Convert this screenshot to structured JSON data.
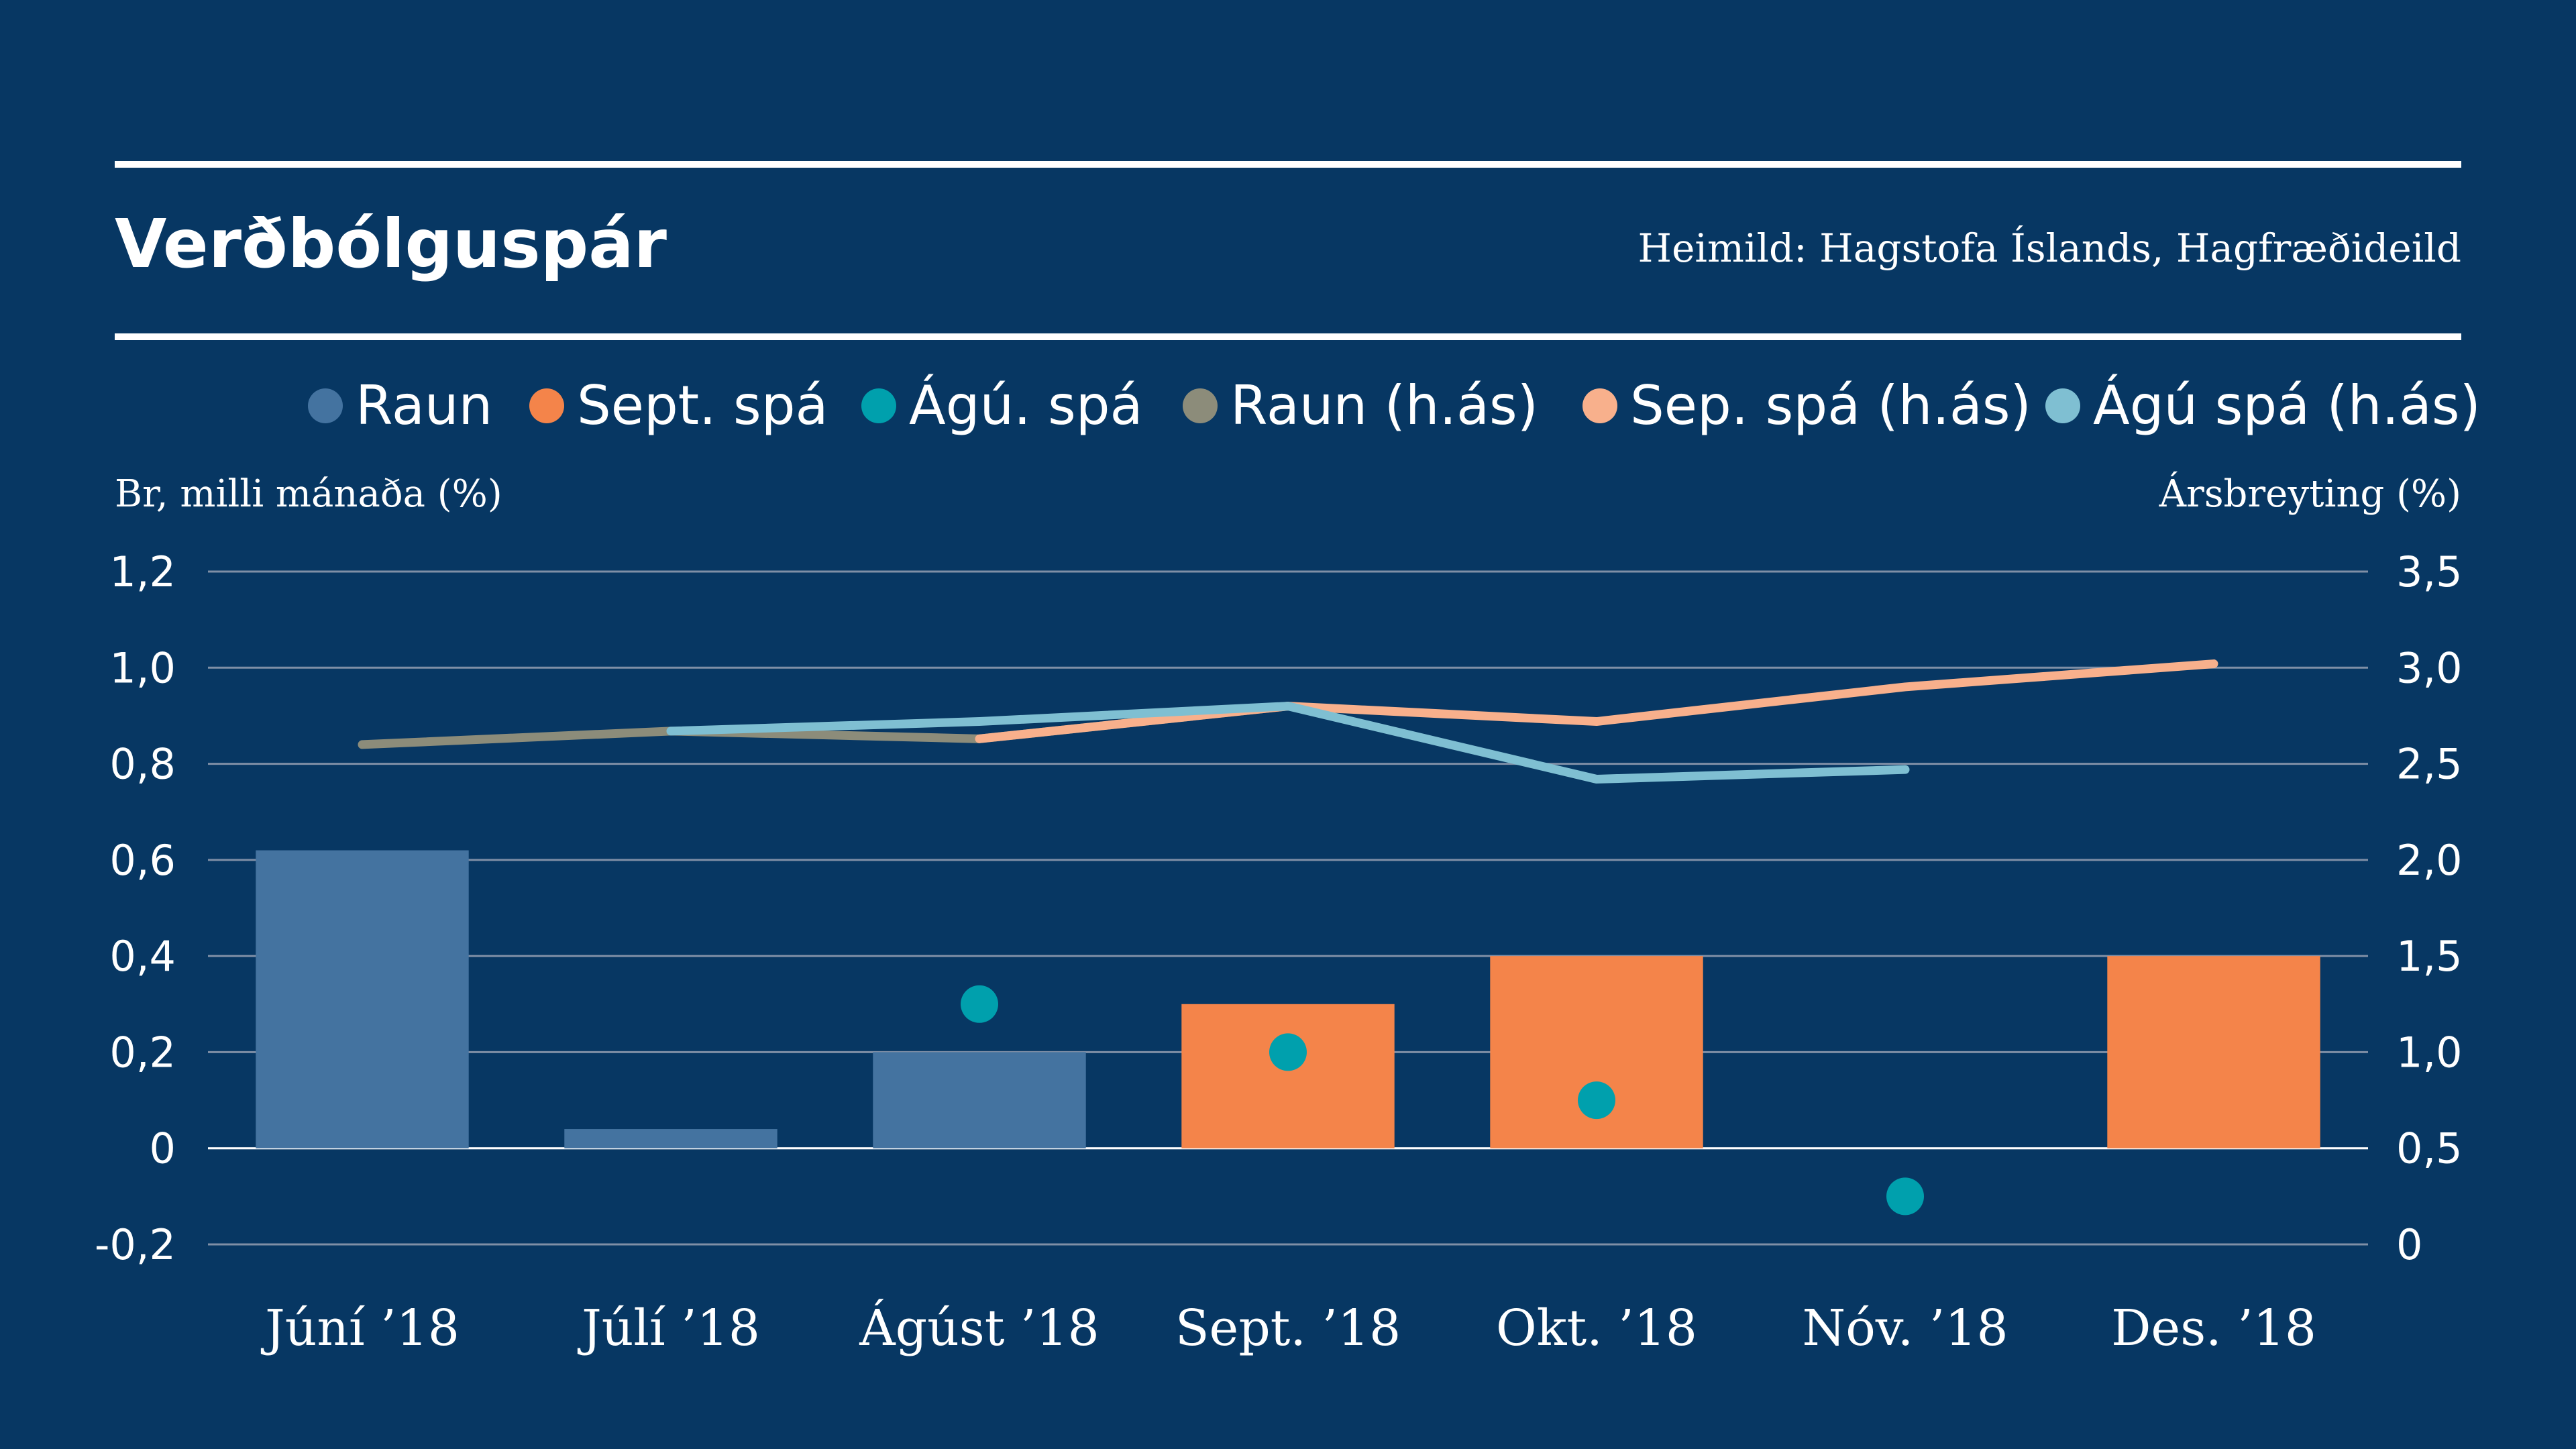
{
  "title": "Verðbólguspár",
  "source": "Heimild: Hagstofa Íslands, Hagfræðideild",
  "colors": {
    "background": "#073763",
    "grid": "#7f8fa6",
    "raun": "#4473a0",
    "sept_spa": "#f4844a",
    "agu_spa": "#00a0ad",
    "raun_has": "#8c8c7a",
    "sep_spa_has": "#f8b08c",
    "agu_spa_has": "#7fbfd2"
  },
  "legend": [
    {
      "label": "Raun",
      "color": "#4473a0"
    },
    {
      "label": "Sept. spá",
      "color": "#f4844a"
    },
    {
      "label": "Ágú. spá",
      "color": "#00a0ad"
    },
    {
      "label": "Raun (h.ás)",
      "color": "#8c8c7a"
    },
    {
      "label": "Sep. spá (h.ás)",
      "color": "#f8b08c"
    },
    {
      "label": "Ágú spá (h.ás)",
      "color": "#7fbfd2"
    }
  ],
  "chart_data": {
    "type": "bar",
    "title": "Verðbólguspár",
    "ylabel": "Br, milli mánaða (%)",
    "y2label": "Ársbreyting (%)",
    "categories": [
      "Júní ’18",
      "Júlí ’18",
      "Ágúst ’18",
      "Sept. ’18",
      "Okt. ’18",
      "Nóv. ’18",
      "Des. ’18"
    ],
    "ylim": [
      -0.2,
      1.2
    ],
    "y2lim": [
      0,
      3.5
    ],
    "yticks": [
      "-0,2",
      "0",
      "0,2",
      "0,4",
      "0,6",
      "0,8",
      "1,0",
      "1,2"
    ],
    "y2ticks": [
      "0",
      "0,5",
      "1,0",
      "1,5",
      "2,0",
      "2,5",
      "3,0",
      "3,5"
    ],
    "grid": true,
    "legend_position": "top",
    "bars": [
      {
        "name": "Raun",
        "values": [
          0.62,
          0.04,
          0.2,
          null,
          null,
          null,
          null
        ]
      },
      {
        "name": "Sept. spá",
        "values": [
          null,
          null,
          null,
          0.3,
          0.4,
          null,
          0.4
        ]
      }
    ],
    "points": [
      {
        "name": "Ágú. spá",
        "values": [
          null,
          null,
          0.3,
          0.2,
          0.1,
          -0.1,
          null
        ]
      }
    ],
    "lines_right_axis": [
      {
        "name": "Raun (h.ás)",
        "values": [
          2.6,
          2.67,
          2.63,
          2.8,
          null,
          null,
          null
        ]
      },
      {
        "name": "Sep. spá (h.ás)",
        "values": [
          null,
          null,
          2.63,
          2.8,
          2.72,
          2.9,
          3.02
        ]
      },
      {
        "name": "Ágú spá (h.ás)",
        "values": [
          null,
          2.67,
          2.72,
          2.8,
          2.42,
          2.47,
          null
        ]
      }
    ]
  }
}
